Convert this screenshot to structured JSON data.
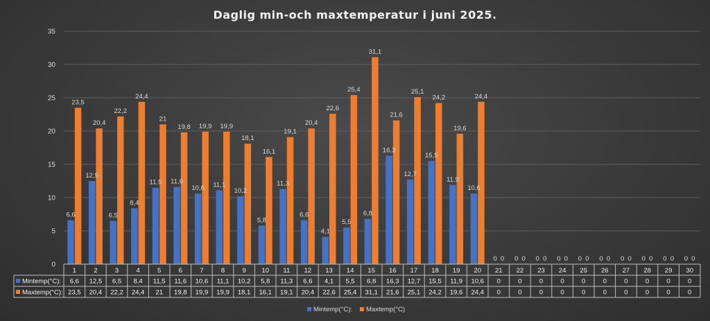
{
  "chart_data": {
    "type": "bar",
    "title": "Daglig min-och maxtemperatur i juni 2025.",
    "categories": [
      "1",
      "2",
      "3",
      "4",
      "5",
      "6",
      "7",
      "8",
      "9",
      "10",
      "11",
      "12",
      "13",
      "14",
      "15",
      "16",
      "17",
      "18",
      "19",
      "20",
      "21",
      "22",
      "23",
      "24",
      "25",
      "26",
      "27",
      "28",
      "29",
      "30"
    ],
    "series": [
      {
        "name": "Mintemp(°C):",
        "color": "#4472c4",
        "values": [
          6.6,
          12.5,
          6.5,
          8.4,
          11.5,
          11.6,
          10.6,
          11.1,
          10.2,
          5.8,
          11.3,
          6.6,
          4.1,
          5.5,
          6.8,
          16.3,
          12.7,
          15.5,
          11.9,
          10.6,
          0,
          0,
          0,
          0,
          0,
          0,
          0,
          0,
          0,
          0
        ],
        "labels": [
          "6,6",
          "12,5",
          "6,5",
          "8,4",
          "11,5",
          "11,6",
          "10,6",
          "11,1",
          "10,2",
          "5,8",
          "11,3",
          "6,6",
          "4,1",
          "5,5",
          "6,8",
          "16,3",
          "12,7",
          "15,5",
          "11,9",
          "10,6",
          "0",
          "0",
          "0",
          "0",
          "0",
          "0",
          "0",
          "0",
          "0",
          "0"
        ]
      },
      {
        "name": "Maxtemp(°C)",
        "table_name": "Maxtemp(°C):",
        "color": "#ed7d31",
        "values": [
          23.5,
          20.4,
          22.2,
          24.4,
          21,
          19.8,
          19.9,
          19.9,
          18.1,
          16.1,
          19.1,
          20.4,
          22.6,
          25.4,
          31.1,
          21.6,
          25.1,
          24.2,
          19.6,
          24.4,
          0,
          0,
          0,
          0,
          0,
          0,
          0,
          0,
          0,
          0
        ],
        "labels": [
          "23,5",
          "20,4",
          "22,2",
          "24,4",
          "21",
          "19,8",
          "19,9",
          "19,9",
          "18,1",
          "16,1",
          "19,1",
          "20,4",
          "22,6",
          "25,4",
          "31,1",
          "21,6",
          "25,1",
          "24,2",
          "19,6",
          "24,4",
          "0",
          "0",
          "0",
          "0",
          "0",
          "0",
          "0",
          "0",
          "0",
          "0"
        ]
      }
    ],
    "ylim": [
      0,
      35
    ],
    "yticks": [
      "0",
      "5",
      "10",
      "15",
      "20",
      "25",
      "30",
      "35"
    ],
    "grid": true,
    "legend": "bottom",
    "data_table": true
  }
}
